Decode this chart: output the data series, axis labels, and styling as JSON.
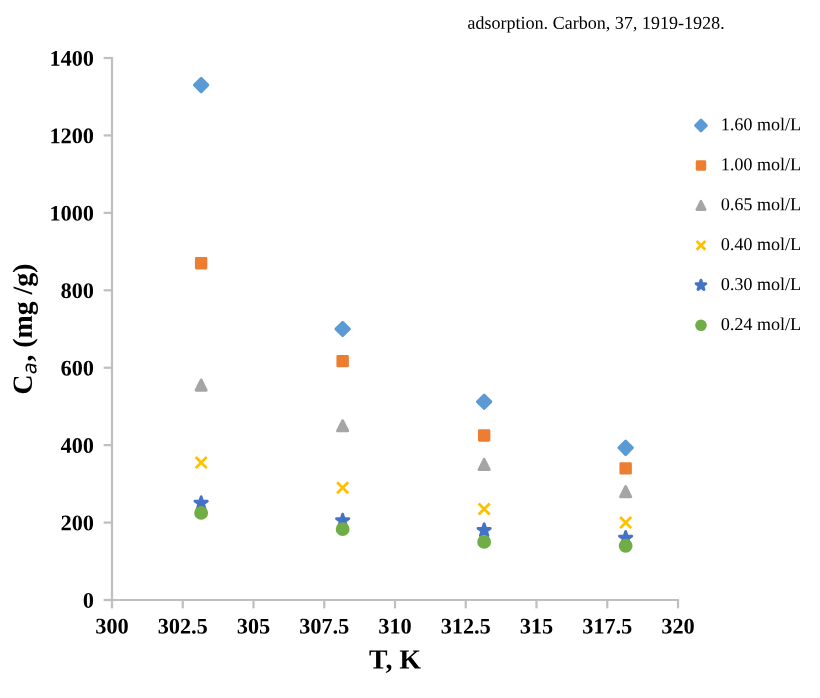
{
  "chart_data": {
    "type": "scatter",
    "xlabel": "T, K",
    "ylabel": "C$_{a}$, (mg /g)",
    "annotations": [
      "adsorption. Carbon, 37, 1919-1928."
    ],
    "x": [
      303.15,
      308.15,
      313.15,
      318.15
    ],
    "xlim": [
      300,
      320
    ],
    "xticks": [
      300,
      302.5,
      305,
      307.5,
      310,
      312.5,
      315,
      317.5,
      320
    ],
    "ylim": [
      0,
      1400
    ],
    "yticks": [
      0,
      200,
      400,
      600,
      800,
      1000,
      1200,
      1400
    ],
    "grid": false,
    "legend": "right",
    "series": [
      {
        "name": "1.60 mol/L",
        "color": "#5b9bd5",
        "marker": "diamond",
        "values": [
          1330,
          700,
          512,
          393
        ]
      },
      {
        "name": "1.00 mol/L",
        "color": "#ed7d31",
        "marker": "square",
        "values": [
          870,
          617,
          425,
          340
        ]
      },
      {
        "name": "0.65 mol/L",
        "color": "#a5a5a5",
        "marker": "triangle",
        "values": [
          555,
          450,
          350,
          280
        ]
      },
      {
        "name": "0.40 mol/L",
        "color": "#ffc000",
        "marker": "cross",
        "values": [
          355,
          290,
          235,
          200
        ]
      },
      {
        "name": "0.30 mol/L",
        "color": "#4472c4",
        "marker": "star",
        "values": [
          250,
          205,
          180,
          160
        ]
      },
      {
        "name": "0.24 mol/L",
        "color": "#70ad47",
        "marker": "circle",
        "values": [
          225,
          183,
          150,
          140
        ]
      }
    ]
  }
}
